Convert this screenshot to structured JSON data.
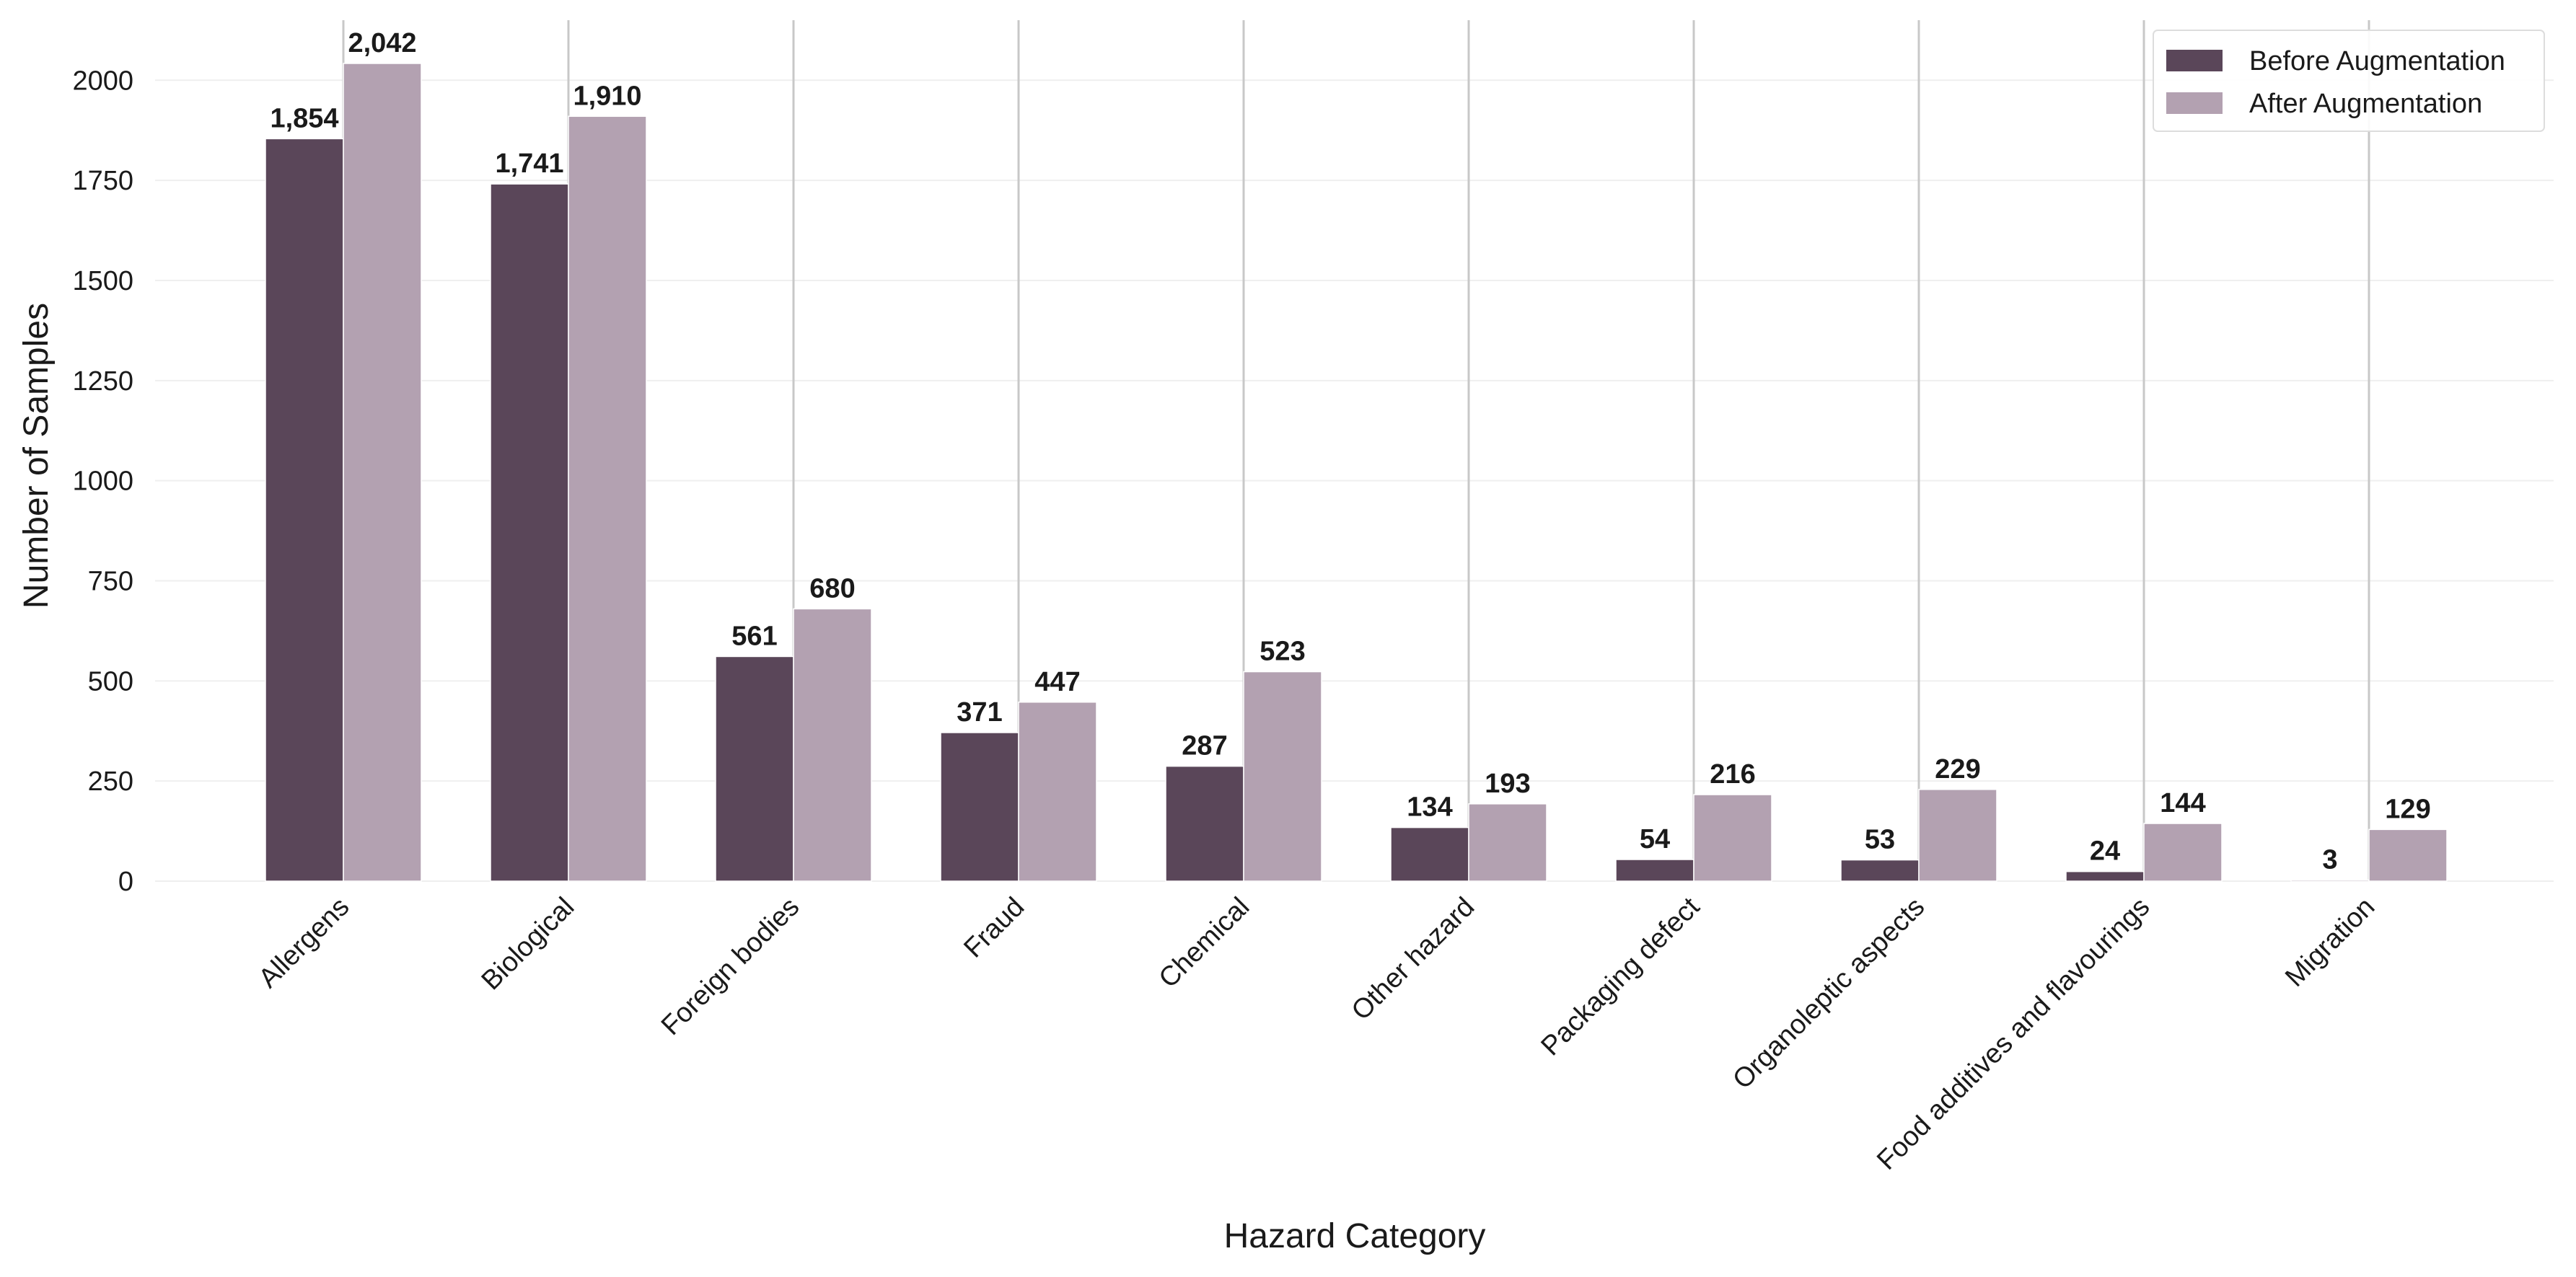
{
  "chart_data": {
    "type": "bar",
    "title": "",
    "xlabel": "Hazard Category",
    "ylabel": "Number of Samples",
    "ylim": [
      0,
      2150
    ],
    "yticks": [
      0,
      250,
      500,
      750,
      1000,
      1250,
      1500,
      1750,
      2000
    ],
    "grid": "horizontal",
    "legend_position": "top-right",
    "categories": [
      "Allergens",
      "Biological",
      "Foreign bodies",
      "Fraud",
      "Chemical",
      "Other hazard",
      "Packaging defect",
      "Organoleptic aspects",
      "Food additives and flavourings",
      "Migration"
    ],
    "series": [
      {
        "name": "Before Augmentation",
        "color": "#5a4659",
        "values": [
          1854,
          1741,
          561,
          371,
          287,
          134,
          54,
          53,
          24,
          3
        ],
        "labels": [
          "1,854",
          "1,741",
          "561",
          "371",
          "287",
          "134",
          "54",
          "53",
          "24",
          "3"
        ]
      },
      {
        "name": "After Augmentation",
        "color": "#b3a1b1",
        "values": [
          2042,
          1910,
          680,
          447,
          523,
          193,
          216,
          229,
          144,
          129
        ],
        "labels": [
          "2,042",
          "1,910",
          "680",
          "447",
          "523",
          "193",
          "216",
          "229",
          "144",
          "129"
        ]
      }
    ]
  }
}
